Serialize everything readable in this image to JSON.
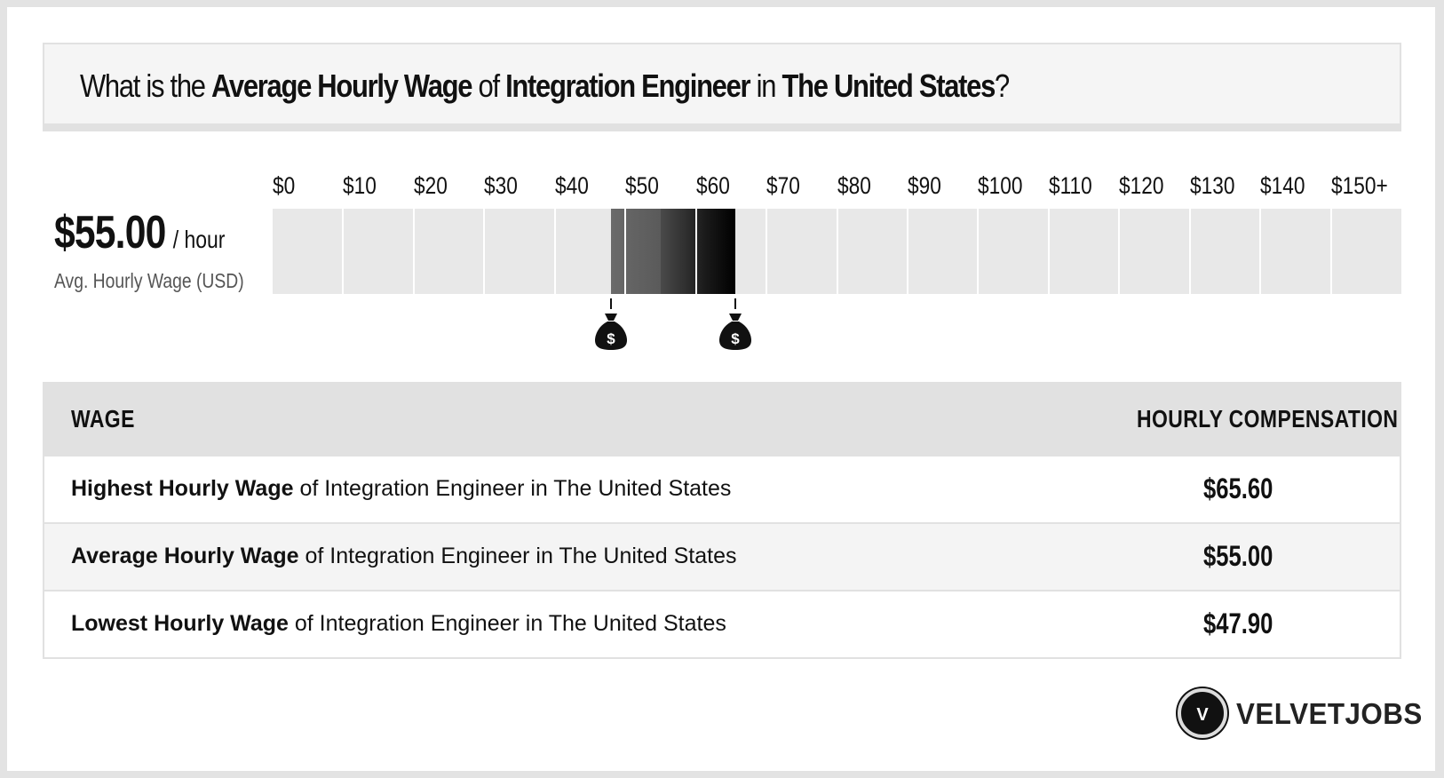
{
  "question": {
    "prefix": "What is the ",
    "metric": "Average Hourly Wage",
    "of": " of ",
    "job": "Integration Engineer",
    "in": " in ",
    "location": "The United States",
    "suffix": "?"
  },
  "summary": {
    "value": "$55.00",
    "unit": "/ hour",
    "caption": "Avg. Hourly Wage (USD)"
  },
  "scale": {
    "ticks": [
      "$0",
      "$10",
      "$20",
      "$30",
      "$40",
      "$50",
      "$60",
      "$70",
      "$80",
      "$90",
      "$100",
      "$110",
      "$120",
      "$130",
      "$140",
      "$150+"
    ],
    "min": 0,
    "max": 150,
    "low": 47.9,
    "avg": 55.0,
    "high": 65.6
  },
  "markers": {
    "icon": "money-bag-icon",
    "symbol": "$"
  },
  "table": {
    "col_wage": "WAGE",
    "col_comp": "HOURLY COMPENSATION",
    "rows": [
      {
        "bold": "Highest Hourly Wage",
        "rest": " of Integration Engineer in The United States",
        "value": "$65.60"
      },
      {
        "bold": "Average Hourly Wage",
        "rest": " of Integration Engineer in The United States",
        "value": "$55.00"
      },
      {
        "bold": "Lowest Hourly Wage",
        "rest": " of Integration Engineer in The United States",
        "value": "$47.90"
      }
    ]
  },
  "brand": {
    "mark": "V",
    "name": "VELVETJOBS"
  },
  "colors": {
    "accent": "#111111",
    "bar_bg": "#e8e8e8",
    "header_bg": "#e1e1e1"
  }
}
